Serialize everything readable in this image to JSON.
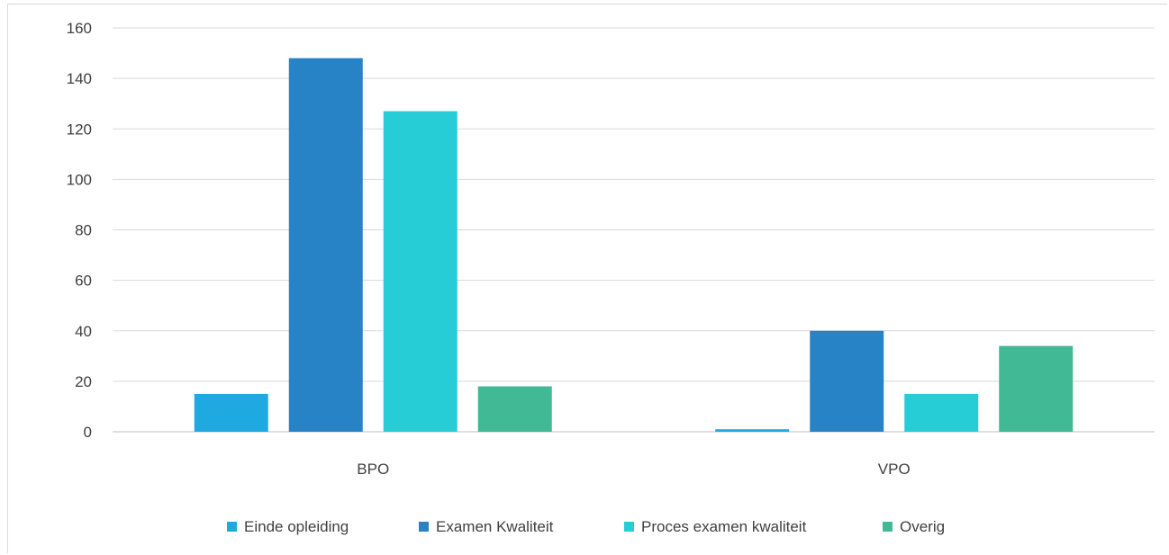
{
  "chart_data": {
    "type": "bar",
    "categories": [
      "BPO",
      "VPO"
    ],
    "series": [
      {
        "name": "Einde opleiding",
        "values": [
          15,
          1
        ],
        "color": "#1fa9e1"
      },
      {
        "name": "Examen Kwaliteit",
        "values": [
          148,
          40
        ],
        "color": "#2783c6"
      },
      {
        "name": "Proces examen kwaliteit",
        "values": [
          127,
          15
        ],
        "color": "#26cdd6"
      },
      {
        "name": "Overig",
        "values": [
          18,
          34
        ],
        "color": "#42b995"
      }
    ],
    "ylim": [
      0,
      160
    ],
    "yticks": [
      0,
      20,
      40,
      60,
      80,
      100,
      120,
      140,
      160
    ],
    "grid": true,
    "legend_position": "bottom"
  }
}
